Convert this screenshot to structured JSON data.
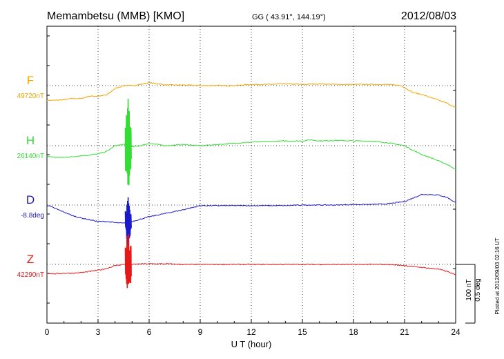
{
  "header": {
    "station": "Memambetsu (MMB)  [KMO]",
    "coords": "GG ( 43.91°, 144.19°)",
    "date": "2012/08/03"
  },
  "plotted_note": "Plotted at 2012/09/03 02:16 UT",
  "scale": {
    "nt": "100 nT",
    "deg": "0.5 deg"
  },
  "chart_data": {
    "type": "line",
    "xlabel": "U T (hour)",
    "xlim": [
      0,
      24
    ],
    "xticks": [
      "0",
      "3",
      "6",
      "9",
      "12",
      "15",
      "18",
      "21",
      "24"
    ],
    "series": [
      {
        "name": "F",
        "baseline": "49720nT",
        "color": "#f0a500",
        "x": [
          0,
          0.5,
          1,
          1.5,
          2,
          2.5,
          3,
          3.5,
          4,
          4.5,
          5,
          5.5,
          6,
          7,
          8,
          9,
          10,
          11,
          12,
          13,
          14,
          15,
          16,
          17,
          18,
          19,
          20,
          20.8,
          21.5,
          22,
          22.5,
          23,
          23.5,
          24
        ],
        "values": [
          -25,
          -25,
          -24,
          -22,
          -22,
          -18,
          -18,
          -16,
          -5,
          0,
          0,
          2,
          5,
          1,
          1,
          0,
          0,
          0,
          2,
          2,
          3,
          2,
          3,
          2,
          2,
          2,
          2,
          0,
          -12,
          -15,
          -20,
          -25,
          -30,
          -38
        ]
      },
      {
        "name": "H",
        "baseline": "26140nT",
        "color": "#33dd33",
        "x": [
          0,
          0.5,
          1,
          1.5,
          2,
          2.5,
          3,
          3.5,
          4,
          4.5,
          5,
          5.5,
          6,
          7,
          8,
          9,
          10,
          11,
          12,
          13,
          14,
          15,
          15.5,
          16,
          17,
          18,
          19,
          20,
          21,
          21.5,
          22,
          22.5,
          23,
          23.5,
          24
        ],
        "values": [
          -18,
          -20,
          -20,
          -19,
          -17,
          -16,
          -14,
          -10,
          0,
          2,
          -2,
          0,
          4,
          0,
          2,
          0,
          2,
          4,
          6,
          7,
          8,
          8,
          10,
          8,
          9,
          8,
          8,
          5,
          0,
          -8,
          -15,
          -20,
          -26,
          -32,
          -40
        ]
      },
      {
        "name": "D",
        "baseline": "-8.8deg",
        "color": "#1a1acc",
        "x": [
          0,
          0.5,
          1,
          1.5,
          2,
          2.5,
          3,
          3.5,
          4,
          4.5,
          5,
          5.5,
          6,
          7,
          8,
          9,
          10,
          11,
          12,
          13,
          14,
          15,
          16,
          17,
          18,
          19,
          20,
          21,
          22,
          22.5,
          23,
          23.5,
          24
        ],
        "values": [
          0,
          -6,
          -12,
          -18,
          -22,
          -25,
          -28,
          -28,
          -30,
          -31,
          -28,
          -24,
          -20,
          -14,
          -8,
          -1,
          -1,
          -1,
          -1,
          -1,
          -1,
          0,
          0,
          0,
          1,
          1,
          2,
          6,
          18,
          18,
          17,
          13,
          4
        ]
      },
      {
        "name": "Z",
        "baseline": "42290nT",
        "color": "#e61919",
        "x": [
          0,
          0.5,
          1,
          1.5,
          2,
          2.5,
          3,
          3.5,
          4,
          4.5,
          5,
          5.5,
          6,
          7,
          8,
          9,
          10,
          11,
          12,
          13,
          14,
          15,
          16,
          17,
          18,
          19,
          20,
          21,
          22,
          23,
          23.5,
          24
        ],
        "values": [
          -15,
          -16,
          -15,
          -15,
          -14,
          -12,
          -10,
          -7,
          -2,
          0,
          0,
          1,
          1,
          1,
          0,
          0,
          0,
          0,
          0,
          0,
          0,
          0,
          0,
          0,
          0,
          0,
          0,
          -2,
          -5,
          -8,
          -12,
          -18
        ]
      }
    ],
    "grid": true
  }
}
